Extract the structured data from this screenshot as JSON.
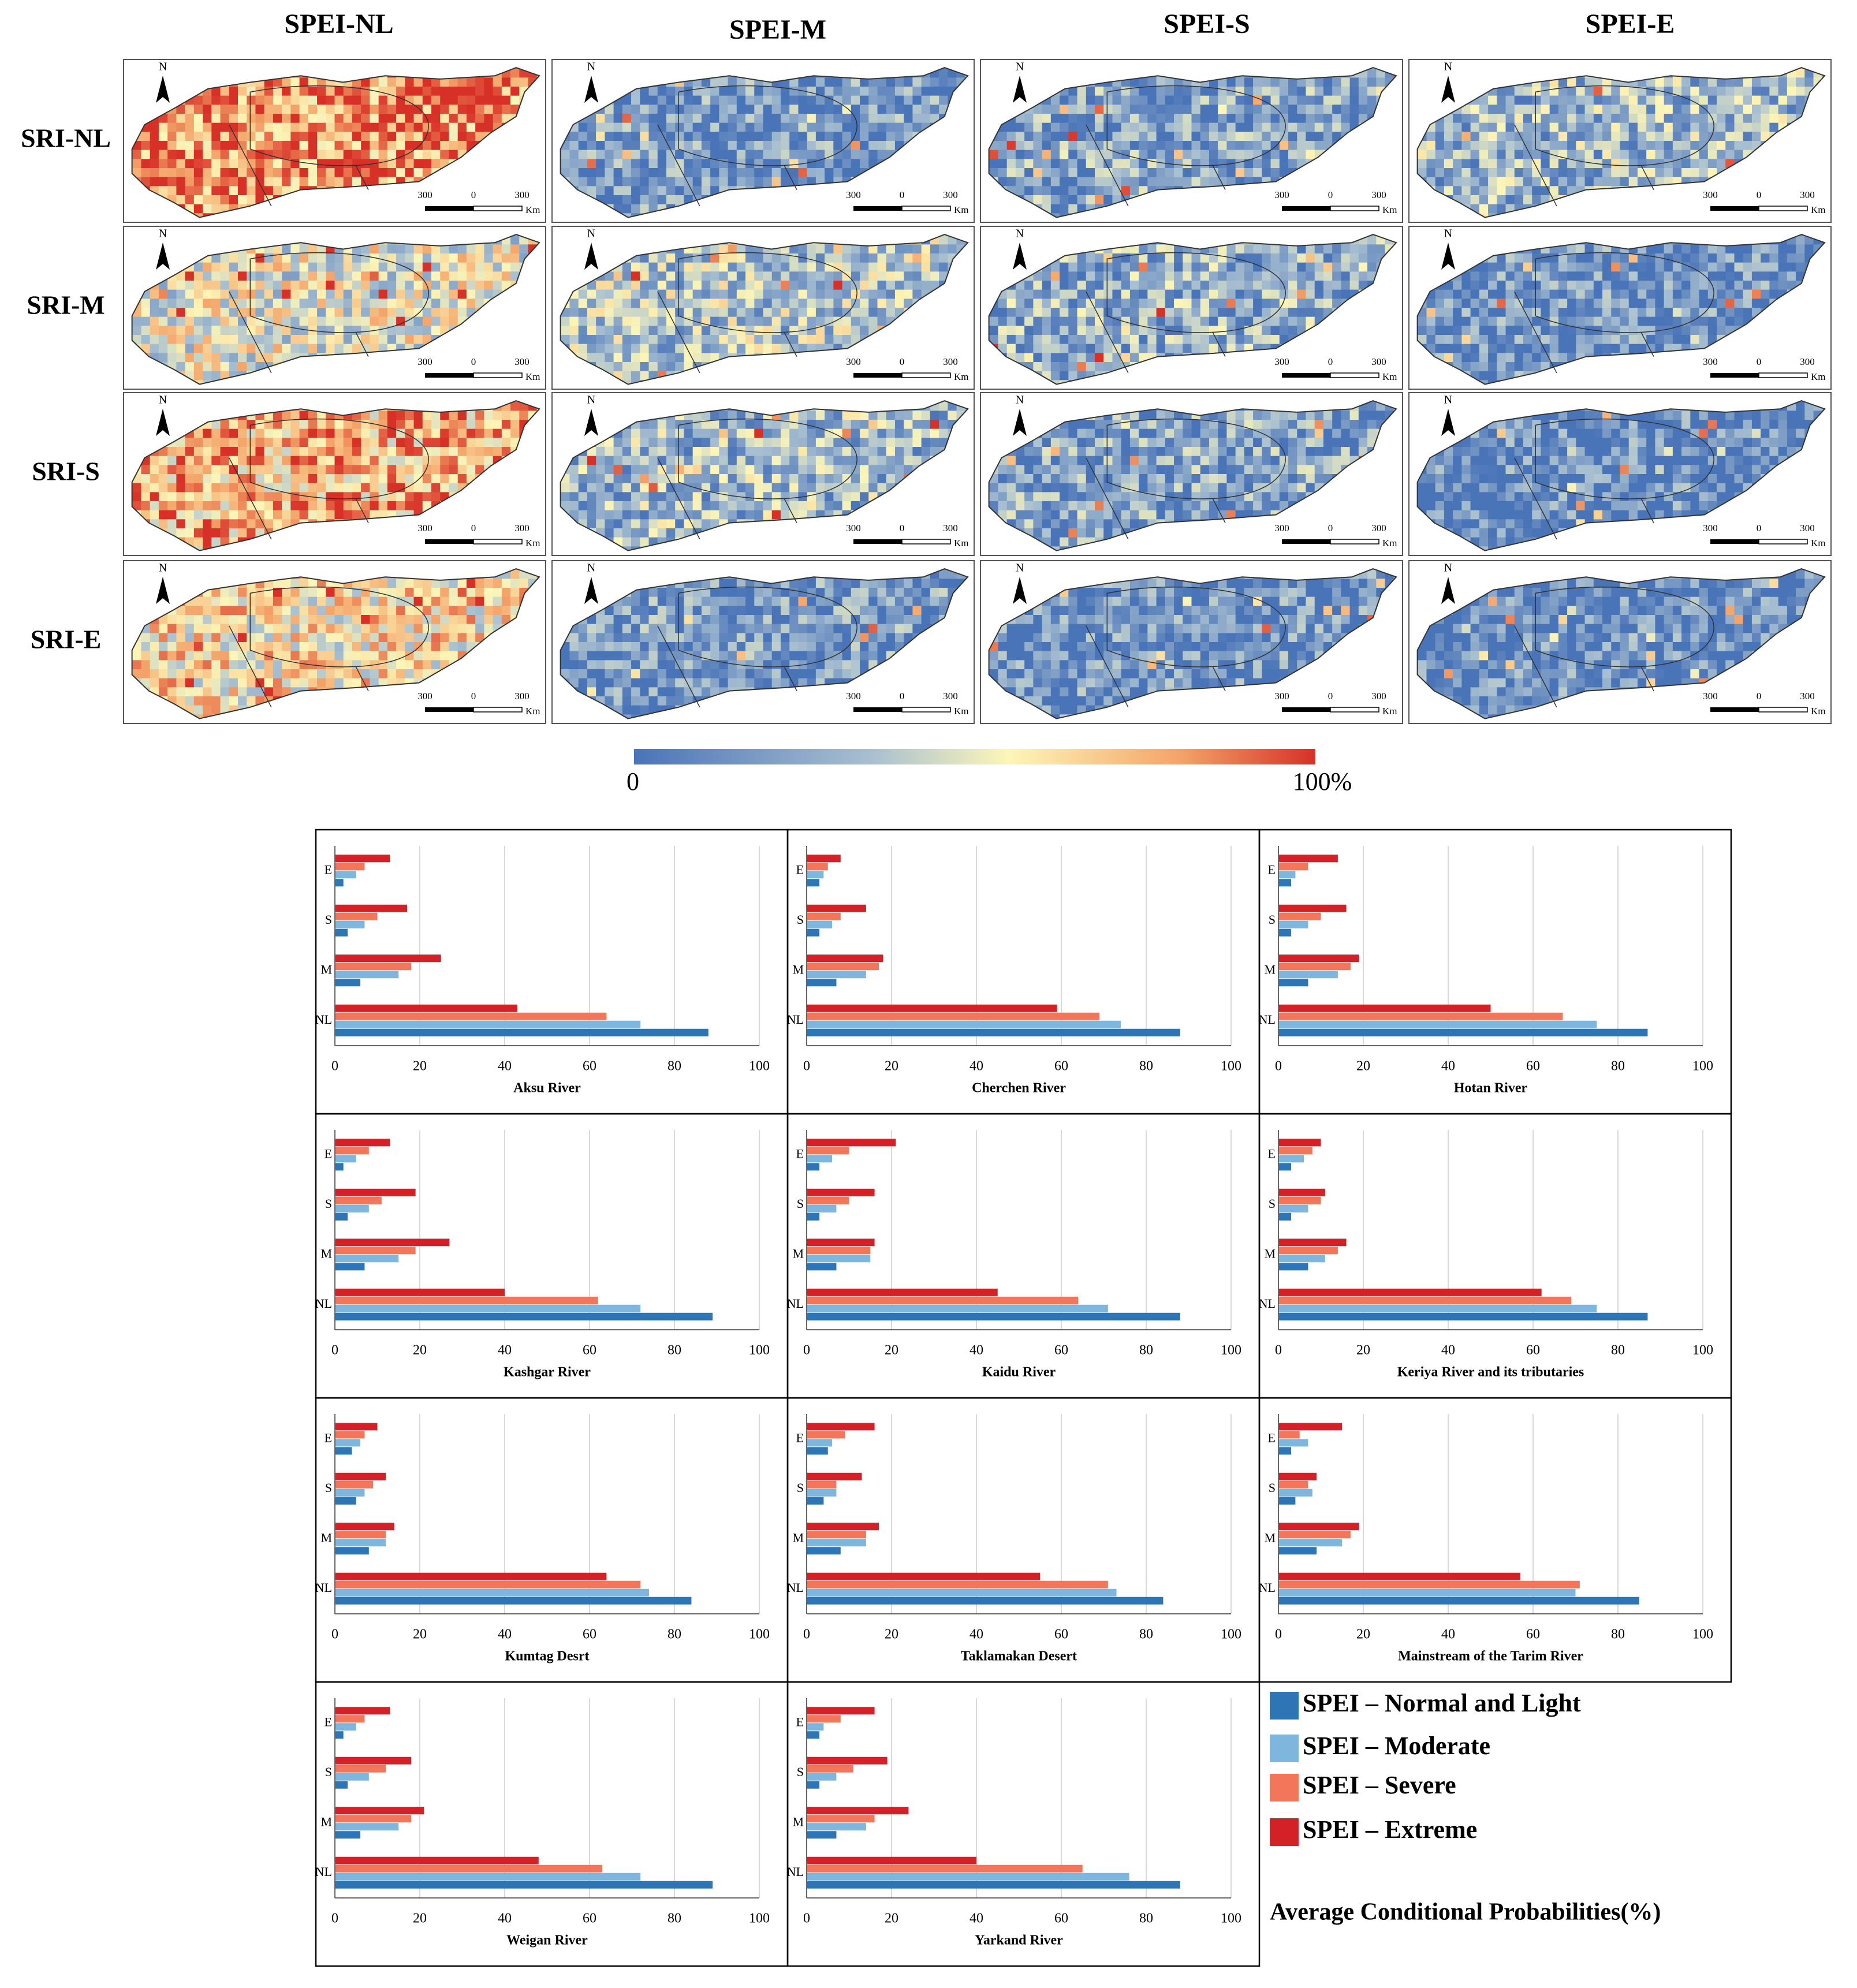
{
  "maps": {
    "col_labels": [
      "SPEI-NL",
      "SPEI-M",
      "SPEI-S",
      "SPEI-E"
    ],
    "row_labels": [
      "SRI-NL",
      "SRI-M",
      "SRI-S",
      "SRI-E"
    ],
    "north": "N",
    "scale_labels": [
      "300",
      "0",
      "300",
      "Km"
    ],
    "colorbar": {
      "min_label": "0",
      "max_label": "100%"
    }
  },
  "legend": {
    "series": [
      {
        "name": "SPEI – Normal and Light",
        "color": "#2e75b6"
      },
      {
        "name": "SPEI – Moderate",
        "color": "#7fb6dd"
      },
      {
        "name": "SPEI – Severe",
        "color": "#f4765a"
      },
      {
        "name": "SPEI – Extreme",
        "color": "#d42027"
      }
    ],
    "caption": "Average Conditional Probabilities(%)"
  },
  "chart_data": [
    {
      "type": "hbar",
      "title": "Aksu River",
      "categories": [
        "E",
        "S",
        "M",
        "NL"
      ],
      "xlim": [
        0,
        100
      ],
      "xticks": [
        0,
        20,
        40,
        60,
        80,
        100
      ],
      "grid": true,
      "series": [
        {
          "values": [
            2,
            3,
            6,
            88
          ]
        },
        {
          "values": [
            5,
            7,
            15,
            72
          ]
        },
        {
          "values": [
            7,
            10,
            18,
            64
          ]
        },
        {
          "values": [
            13,
            17,
            25,
            43
          ]
        }
      ]
    },
    {
      "type": "hbar",
      "title": "Cherchen River",
      "categories": [
        "E",
        "S",
        "M",
        "NL"
      ],
      "xlim": [
        0,
        100
      ],
      "xticks": [
        0,
        20,
        40,
        60,
        80,
        100
      ],
      "grid": true,
      "series": [
        {
          "values": [
            3,
            3,
            7,
            88
          ]
        },
        {
          "values": [
            4,
            6,
            14,
            74
          ]
        },
        {
          "values": [
            5,
            8,
            17,
            69
          ]
        },
        {
          "values": [
            8,
            14,
            18,
            59
          ]
        }
      ]
    },
    {
      "type": "hbar",
      "title": "Hotan River",
      "categories": [
        "E",
        "S",
        "M",
        "NL"
      ],
      "xlim": [
        0,
        100
      ],
      "xticks": [
        0,
        20,
        40,
        60,
        80,
        100
      ],
      "grid": true,
      "series": [
        {
          "values": [
            3,
            3,
            7,
            87
          ]
        },
        {
          "values": [
            4,
            7,
            14,
            75
          ]
        },
        {
          "values": [
            7,
            10,
            17,
            67
          ]
        },
        {
          "values": [
            14,
            16,
            19,
            50
          ]
        }
      ]
    },
    {
      "type": "hbar",
      "title": "Kashgar River",
      "categories": [
        "E",
        "S",
        "M",
        "NL"
      ],
      "xlim": [
        0,
        100
      ],
      "xticks": [
        0,
        20,
        40,
        60,
        80,
        100
      ],
      "grid": true,
      "series": [
        {
          "values": [
            2,
            3,
            7,
            89
          ]
        },
        {
          "values": [
            5,
            8,
            15,
            72
          ]
        },
        {
          "values": [
            8,
            11,
            19,
            62
          ]
        },
        {
          "values": [
            13,
            19,
            27,
            40
          ]
        }
      ]
    },
    {
      "type": "hbar",
      "title": "Kaidu River",
      "categories": [
        "E",
        "S",
        "M",
        "NL"
      ],
      "xlim": [
        0,
        100
      ],
      "xticks": [
        0,
        20,
        40,
        60,
        80,
        100
      ],
      "grid": true,
      "series": [
        {
          "values": [
            3,
            3,
            7,
            88
          ]
        },
        {
          "values": [
            6,
            7,
            15,
            71
          ]
        },
        {
          "values": [
            10,
            10,
            15,
            64
          ]
        },
        {
          "values": [
            21,
            16,
            16,
            45
          ]
        }
      ]
    },
    {
      "type": "hbar",
      "title": "Keriya River and its tributaries",
      "categories": [
        "E",
        "S",
        "M",
        "NL"
      ],
      "xlim": [
        0,
        100
      ],
      "xticks": [
        0,
        20,
        40,
        60,
        80,
        100
      ],
      "grid": true,
      "series": [
        {
          "values": [
            3,
            3,
            7,
            87
          ]
        },
        {
          "values": [
            6,
            7,
            11,
            75
          ]
        },
        {
          "values": [
            8,
            10,
            14,
            69
          ]
        },
        {
          "values": [
            10,
            11,
            16,
            62
          ]
        }
      ]
    },
    {
      "type": "hbar",
      "title": "Kumtag Desrt",
      "categories": [
        "E",
        "S",
        "M",
        "NL"
      ],
      "xlim": [
        0,
        100
      ],
      "xticks": [
        0,
        20,
        40,
        60,
        80,
        100
      ],
      "grid": true,
      "series": [
        {
          "values": [
            4,
            5,
            8,
            84
          ]
        },
        {
          "values": [
            6,
            7,
            12,
            74
          ]
        },
        {
          "values": [
            7,
            9,
            12,
            72
          ]
        },
        {
          "values": [
            10,
            12,
            14,
            64
          ]
        }
      ]
    },
    {
      "type": "hbar",
      "title": "Taklamakan Desert",
      "categories": [
        "E",
        "S",
        "M",
        "NL"
      ],
      "xlim": [
        0,
        100
      ],
      "xticks": [
        0,
        20,
        40,
        60,
        80,
        100
      ],
      "grid": true,
      "series": [
        {
          "values": [
            5,
            4,
            8,
            84
          ]
        },
        {
          "values": [
            6,
            7,
            14,
            73
          ]
        },
        {
          "values": [
            9,
            7,
            14,
            71
          ]
        },
        {
          "values": [
            16,
            13,
            17,
            55
          ]
        }
      ]
    },
    {
      "type": "hbar",
      "title": "Mainstream of the Tarim River",
      "categories": [
        "E",
        "S",
        "M",
        "NL"
      ],
      "xlim": [
        0,
        100
      ],
      "xticks": [
        0,
        20,
        40,
        60,
        80,
        100
      ],
      "grid": true,
      "series": [
        {
          "values": [
            3,
            4,
            9,
            85
          ]
        },
        {
          "values": [
            7,
            8,
            15,
            70
          ]
        },
        {
          "values": [
            5,
            7,
            17,
            71
          ]
        },
        {
          "values": [
            15,
            9,
            19,
            57
          ]
        }
      ]
    },
    {
      "type": "hbar",
      "title": "Weigan River",
      "categories": [
        "E",
        "S",
        "M",
        "NL"
      ],
      "xlim": [
        0,
        100
      ],
      "xticks": [
        0,
        20,
        40,
        60,
        80,
        100
      ],
      "grid": true,
      "series": [
        {
          "values": [
            2,
            3,
            6,
            89
          ]
        },
        {
          "values": [
            5,
            8,
            15,
            72
          ]
        },
        {
          "values": [
            7,
            12,
            18,
            63
          ]
        },
        {
          "values": [
            13,
            18,
            21,
            48
          ]
        }
      ]
    },
    {
      "type": "hbar",
      "title": "Yarkand River",
      "categories": [
        "E",
        "S",
        "M",
        "NL"
      ],
      "xlim": [
        0,
        100
      ],
      "xticks": [
        0,
        20,
        40,
        60,
        80,
        100
      ],
      "grid": true,
      "series": [
        {
          "values": [
            3,
            3,
            7,
            88
          ]
        },
        {
          "values": [
            4,
            7,
            14,
            76
          ]
        },
        {
          "values": [
            8,
            11,
            16,
            65
          ]
        },
        {
          "values": [
            16,
            19,
            24,
            40
          ]
        }
      ]
    }
  ]
}
